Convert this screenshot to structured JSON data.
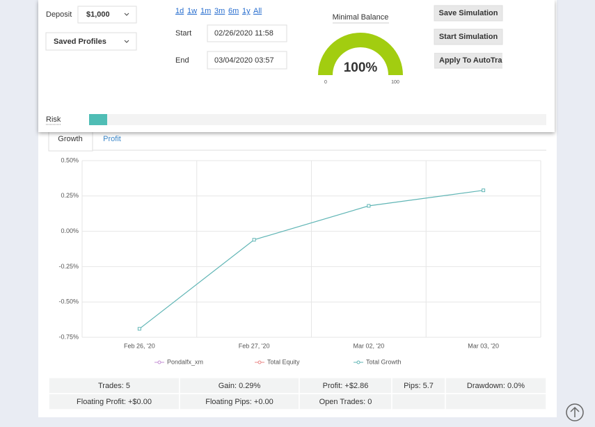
{
  "controls": {
    "deposit_label": "Deposit",
    "deposit": "$1,000",
    "profiles": "Saved Profiles",
    "periods": [
      "1d",
      "1w",
      "1m",
      "3m",
      "6m",
      "1y",
      "All"
    ],
    "start_label": "Start",
    "start": "02/26/2020 11:58",
    "end_label": "End",
    "end": "03/04/2020 03:57",
    "risk_label": "Risk"
  },
  "gauge": {
    "title": "Minimal Balance",
    "value": 100,
    "value_label": "100%",
    "min": 0,
    "max": 100,
    "color": "#a2cd10"
  },
  "buttons": [
    "Save Simulation",
    "Start Simulation",
    "Apply To AutoTrad"
  ],
  "tabs": [
    "Growth",
    "Profit"
  ],
  "chart_data": {
    "type": "line",
    "categories": [
      "Feb 26, '20",
      "Feb 27, '20",
      "Mar 02, '20",
      "Mar 03, '20"
    ],
    "series": [
      {
        "name": "Pondalfx_xm",
        "color": "#c48fd4",
        "values": [
          null,
          null,
          null,
          null
        ]
      },
      {
        "name": "Total Equity",
        "color": "#e98585",
        "values": [
          null,
          null,
          null,
          null
        ]
      },
      {
        "name": "Total Growth",
        "color": "#5fb5b5",
        "values": [
          -0.69,
          -0.06,
          0.18,
          0.29
        ]
      }
    ],
    "ylim": [
      -0.75,
      0.5
    ],
    "yticks": [
      {
        "value": -0.75,
        "label": "-0.75%"
      },
      {
        "value": -0.5,
        "label": "-0.50%"
      },
      {
        "value": -0.25,
        "label": "-0.25%"
      },
      {
        "value": 0,
        "label": "0.00%"
      },
      {
        "value": 0.25,
        "label": "0.25%"
      },
      {
        "value": 0.5,
        "label": "0.50%"
      }
    ],
    "grid": true
  },
  "stats": {
    "rows": [
      [
        "Trades: 5",
        "Gain: 0.29%",
        "Profit: +$2.86",
        "Pips: 5.7",
        "Drawdown: 0.0%"
      ],
      [
        "Floating Profit: +$0.00",
        "Floating Pips: +0.00",
        "Open Trades: 0"
      ]
    ]
  }
}
